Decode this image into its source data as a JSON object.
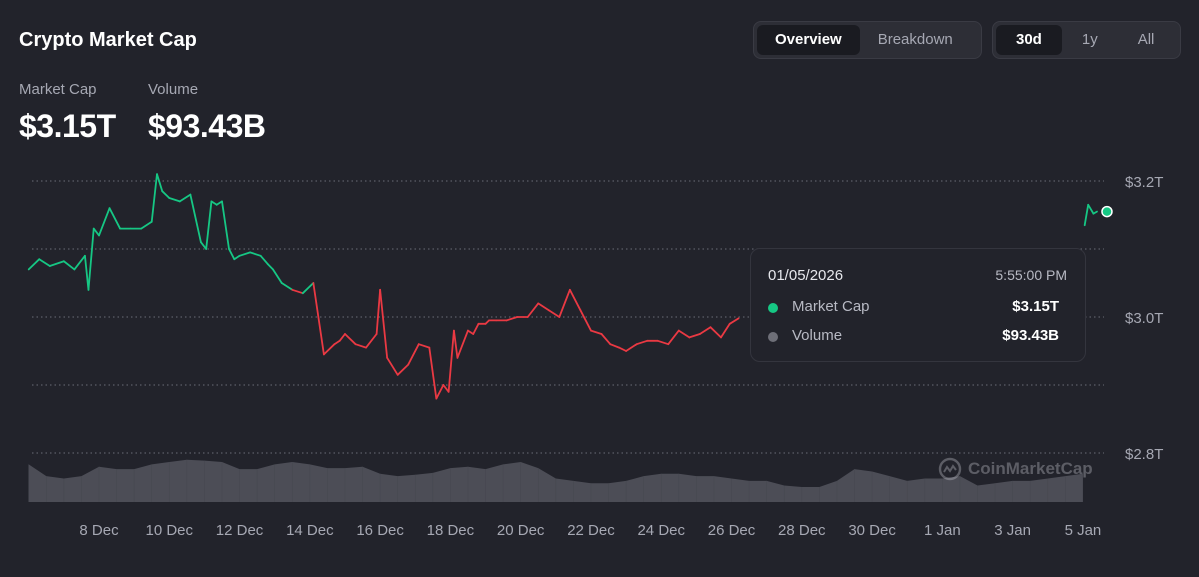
{
  "header": {
    "title": "Crypto Market Cap",
    "view_tabs": [
      {
        "label": "Overview",
        "active": true
      },
      {
        "label": "Breakdown",
        "active": false
      }
    ],
    "range_tabs": [
      {
        "label": "30d",
        "active": true
      },
      {
        "label": "1y",
        "active": false
      },
      {
        "label": "All",
        "active": false
      }
    ]
  },
  "stats": {
    "market_cap_label": "Market Cap",
    "market_cap_value": "$3.15T",
    "volume_label": "Volume",
    "volume_value": "$93.43B"
  },
  "tooltip": {
    "date": "01/05/2026",
    "time": "5:55:00 PM",
    "rows": [
      {
        "label": "Market Cap",
        "value": "$3.15T",
        "color": "#16c784"
      },
      {
        "label": "Volume",
        "value": "$93.43B",
        "color": "#6e6f78"
      }
    ]
  },
  "watermark": "CoinMarketCap",
  "colors": {
    "up": "#16c784",
    "down": "#ea3943",
    "grid": "#5c5e68",
    "volume": "#53555e",
    "axis_text": "#a6a8b3"
  },
  "chart_data": {
    "type": "line",
    "title": "Crypto Market Cap",
    "y_ticks": [
      {
        "value": 3.2,
        "label": "$3.2T"
      },
      {
        "value": 3.0,
        "label": "$3.0T"
      },
      {
        "value": 2.8,
        "label": "$2.8T"
      }
    ],
    "ylim": [
      2.8,
      3.2
    ],
    "y_unit": "trillion USD",
    "x_ticks": [
      "8 Dec",
      "10 Dec",
      "12 Dec",
      "14 Dec",
      "16 Dec",
      "18 Dec",
      "20 Dec",
      "22 Dec",
      "24 Dec",
      "26 Dec",
      "28 Dec",
      "30 Dec",
      "1 Jan",
      "3 Jan",
      "5 Jan"
    ],
    "baseline": 3.04,
    "series": [
      {
        "name": "Market Cap",
        "x": [
          6.0,
          6.3,
          6.6,
          7.0,
          7.3,
          7.6,
          7.7,
          7.85,
          8.0,
          8.3,
          8.6,
          8.9,
          9.2,
          9.5,
          9.65,
          9.8,
          10.0,
          10.3,
          10.6,
          10.9,
          11.05,
          11.2,
          11.35,
          11.5,
          11.7,
          11.85,
          12.0,
          12.3,
          12.6,
          12.8,
          12.95,
          13.2,
          13.5,
          13.8,
          14.1,
          14.4,
          14.7,
          14.85,
          15.0,
          15.3,
          15.6,
          15.9,
          16.0,
          16.2,
          16.5,
          16.8,
          17.1,
          17.4,
          17.6,
          17.8,
          17.95,
          18.1,
          18.2,
          18.5,
          18.65,
          18.8,
          19.0,
          19.1,
          19.3,
          19.6,
          19.9,
          20.2,
          20.5,
          20.8,
          21.1,
          21.4,
          21.7,
          22.0,
          22.3,
          22.55,
          22.8,
          23.0,
          23.3,
          23.6,
          23.9,
          24.2,
          24.5,
          24.8,
          25.1,
          25.4,
          25.7,
          25.95,
          26.2
        ],
        "values": [
          3.07,
          3.085,
          3.075,
          3.082,
          3.07,
          3.09,
          3.04,
          3.13,
          3.12,
          3.16,
          3.13,
          3.13,
          3.13,
          3.14,
          3.21,
          3.185,
          3.175,
          3.17,
          3.18,
          3.11,
          3.1,
          3.17,
          3.165,
          3.17,
          3.1,
          3.085,
          3.09,
          3.095,
          3.09,
          3.078,
          3.07,
          3.05,
          3.04,
          3.035,
          3.05,
          2.945,
          2.96,
          2.965,
          2.975,
          2.96,
          2.955,
          2.975,
          3.04,
          2.94,
          2.915,
          2.93,
          2.96,
          2.955,
          2.88,
          2.9,
          2.89,
          2.98,
          2.94,
          2.98,
          2.975,
          2.99,
          2.99,
          2.995,
          2.995,
          2.995,
          3.0,
          3.0,
          3.02,
          3.01,
          3.0,
          3.04,
          3.01,
          2.98,
          2.975,
          2.96,
          2.955,
          2.95,
          2.96,
          2.965,
          2.965,
          2.96,
          2.98,
          2.97,
          2.975,
          2.985,
          2.97,
          2.99,
          2.998
        ]
      },
      {
        "name": "Market Cap (latest)",
        "x": [
          5.05,
          5.15,
          5.3,
          5.4
        ],
        "values": [
          3.135,
          3.165,
          3.152,
          3.155
        ]
      },
      {
        "name": "Volume",
        "x": [
          6.0,
          6.5,
          7.0,
          7.5,
          8.0,
          8.5,
          9.0,
          9.5,
          10.0,
          10.5,
          11.0,
          11.5,
          12.0,
          12.5,
          13.0,
          13.5,
          14.0,
          14.5,
          15.0,
          15.5,
          16.0,
          16.5,
          17.0,
          17.5,
          18.0,
          18.5,
          19.0,
          19.5,
          20.0,
          20.5,
          21.0,
          21.5,
          22.0,
          22.5,
          23.0,
          23.5,
          24.0,
          24.5,
          25.0,
          25.5,
          26.0,
          26.5,
          27.0,
          27.5,
          28.0,
          28.5,
          29.0,
          29.5,
          30.0,
          30.5,
          31.0,
          31.5,
          32.0,
          32.5,
          33.0,
          33.5,
          34.0,
          34.5,
          35.0,
          35.5,
          36.0
        ],
        "values": [
          0.8,
          0.55,
          0.5,
          0.55,
          0.75,
          0.7,
          0.7,
          0.8,
          0.85,
          0.9,
          0.88,
          0.85,
          0.7,
          0.7,
          0.8,
          0.85,
          0.8,
          0.72,
          0.72,
          0.75,
          0.6,
          0.55,
          0.58,
          0.62,
          0.72,
          0.75,
          0.7,
          0.8,
          0.85,
          0.72,
          0.5,
          0.45,
          0.4,
          0.4,
          0.45,
          0.55,
          0.6,
          0.6,
          0.55,
          0.55,
          0.5,
          0.45,
          0.45,
          0.35,
          0.32,
          0.32,
          0.45,
          0.7,
          0.65,
          0.55,
          0.45,
          0.5,
          0.5,
          0.55,
          0.35,
          0.4,
          0.45,
          0.45,
          0.5,
          0.55,
          0.6
        ]
      }
    ]
  }
}
